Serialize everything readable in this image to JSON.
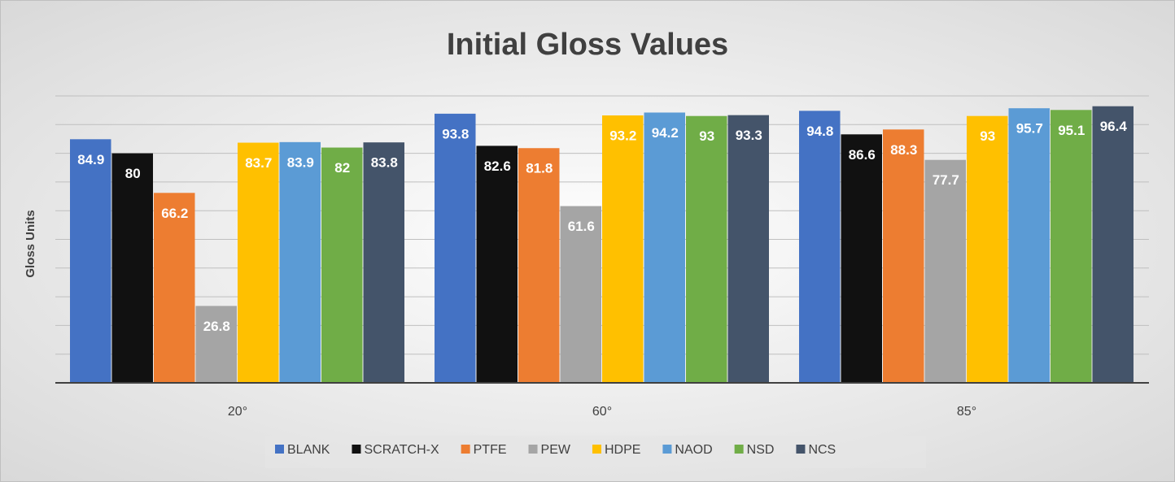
{
  "chart_data": {
    "type": "bar",
    "title": "Initial Gloss Values",
    "y_label": "Gloss Units",
    "categories": [
      "20°",
      "60°",
      "85°"
    ],
    "series": [
      {
        "name": "BLANK",
        "color": "#4472c4",
        "values": [
          84.9,
          93.8,
          94.8
        ]
      },
      {
        "name": "SCRATCH-X",
        "color": "#111111",
        "values": [
          80,
          82.6,
          86.6
        ]
      },
      {
        "name": "PTFE",
        "color": "#ed7d31",
        "values": [
          66.2,
          81.8,
          88.3
        ]
      },
      {
        "name": "PEW",
        "color": "#a5a5a5",
        "values": [
          26.8,
          61.6,
          77.7
        ]
      },
      {
        "name": "HDPE",
        "color": "#ffc000",
        "values": [
          83.7,
          93.2,
          93
        ]
      },
      {
        "name": "NAOD",
        "color": "#5b9bd5",
        "values": [
          83.9,
          94.2,
          95.7
        ]
      },
      {
        "name": "NSD",
        "color": "#70ad47",
        "values": [
          82,
          93,
          95.1
        ]
      },
      {
        "name": "NCS",
        "color": "#44546a",
        "values": [
          83.8,
          93.3,
          96.4
        ]
      }
    ],
    "ylim": [
      0,
      100
    ],
    "yticks": [
      0,
      10,
      20,
      30,
      40,
      50,
      60,
      70,
      80,
      90,
      100
    ],
    "grid": true,
    "legend": "bottom"
  }
}
